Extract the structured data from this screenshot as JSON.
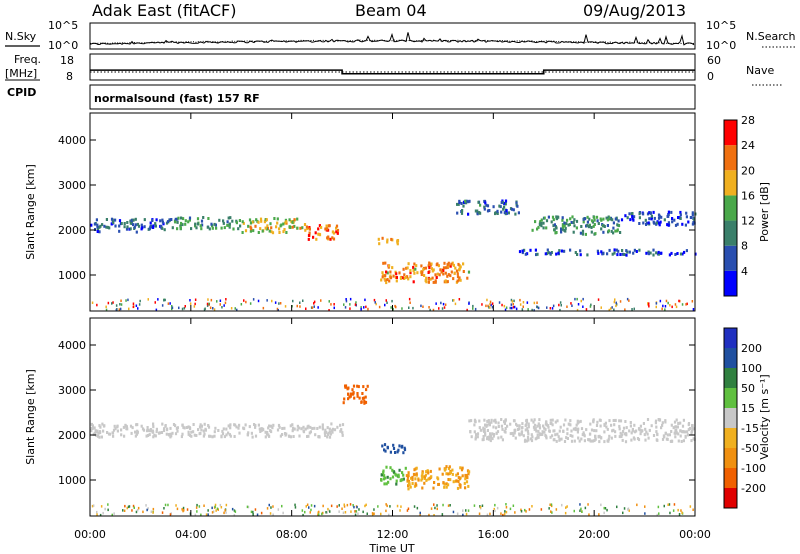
{
  "header": {
    "radar": "Adak East (fitACF)",
    "beam": "Beam 04",
    "date": "09/Aug/2013"
  },
  "noise_panel": {
    "left_label": "N.Sky",
    "right_label": "N.Search",
    "left_ticks": [
      "10^5",
      "10^0"
    ],
    "right_ticks": [
      "10^5",
      "10^0"
    ]
  },
  "freq_panel": {
    "left_label_1": "Freq.",
    "left_label_2": "[MHz]",
    "cpid_label": "CPID",
    "right_label": "Nave",
    "left_ticks": [
      "18",
      "8"
    ],
    "right_ticks": [
      "60",
      "0"
    ],
    "freq_mhz": [
      {
        "t_start": "00:00",
        "t_end": "10:00",
        "value": 11.8
      },
      {
        "t_start": "10:00",
        "t_end": "18:00",
        "value": 10.4
      },
      {
        "t_start": "18:00",
        "t_end": "24:00",
        "value": 11.8
      }
    ]
  },
  "cpid_text": "normalsound (fast) 157 RF",
  "colors": {
    "power": [
      "#0000ff",
      "#2a4fb0",
      "#3a7f6a",
      "#4aa84a",
      "#f0b020",
      "#f07010",
      "#ff0000"
    ],
    "velocity": [
      "#e00000",
      "#f06000",
      "#f09010",
      "#f0b020",
      "#c8c8c8",
      "#60c040",
      "#308040",
      "#2050a0",
      "#2030c0"
    ]
  },
  "chart_data": [
    {
      "type": "heatmap",
      "name": "power",
      "ylabel": "Slant Range [km]",
      "y_ticks": [
        "1000",
        "2000",
        "3000",
        "4000"
      ],
      "ylim": [
        200,
        4600
      ],
      "x_ticks": [
        "00:00",
        "04:00",
        "08:00",
        "12:00",
        "16:00",
        "20:00",
        "00:00"
      ],
      "xlim_hours": [
        0,
        24
      ],
      "colorbar_label": "Power [dB]",
      "colorbar_ticks": [
        "4",
        "8",
        "12",
        "16",
        "20",
        "24",
        "28"
      ],
      "colorbar_range": [
        0,
        30
      ],
      "features": [
        {
          "t_start": 0.0,
          "t_end": 3.0,
          "range_center_km": 2100,
          "range_half_km": 150,
          "power_db": 8
        },
        {
          "t_start": 3.0,
          "t_end": 6.0,
          "range_center_km": 2150,
          "range_half_km": 130,
          "power_db": 12
        },
        {
          "t_start": 6.0,
          "t_end": 8.5,
          "range_center_km": 2100,
          "range_half_km": 160,
          "power_db": 18
        },
        {
          "t_start": 8.5,
          "t_end": 9.8,
          "range_center_km": 1950,
          "range_half_km": 160,
          "power_db": 24
        },
        {
          "t_start": 11.3,
          "t_end": 12.2,
          "range_center_km": 1750,
          "range_half_km": 70,
          "power_db": 22
        },
        {
          "t_start": 11.5,
          "t_end": 15.0,
          "range_center_km": 1050,
          "range_half_km": 220,
          "power_db": 22
        },
        {
          "t_start": 14.5,
          "t_end": 17.0,
          "range_center_km": 2500,
          "range_half_km": 150,
          "power_db": 8
        },
        {
          "t_start": 17.5,
          "t_end": 21.0,
          "range_center_km": 2100,
          "range_half_km": 200,
          "power_db": 12
        },
        {
          "t_start": 21.0,
          "t_end": 24.0,
          "range_center_km": 2250,
          "range_half_km": 150,
          "power_db": 6
        },
        {
          "t_start": 17.0,
          "t_end": 24.0,
          "range_center_km": 1500,
          "range_half_km": 60,
          "power_db": 6
        }
      ]
    },
    {
      "type": "heatmap",
      "name": "velocity",
      "ylabel": "Slant Range [km]",
      "y_ticks": [
        "1000",
        "2000",
        "3000",
        "4000"
      ],
      "ylim": [
        200,
        4600
      ],
      "x_ticks": [
        "00:00",
        "04:00",
        "08:00",
        "12:00",
        "16:00",
        "20:00",
        "00:00"
      ],
      "xlim_hours": [
        0,
        24
      ],
      "xlabel": "Time UT",
      "colorbar_label": "Velocity [m s⁻¹]",
      "colorbar_ticks": [
        "200",
        "100",
        "50",
        "15",
        "-15",
        "-50",
        "-100",
        "-200"
      ],
      "features": [
        {
          "t_start": 0.0,
          "t_end": 10.0,
          "range_center_km": 2100,
          "range_half_km": 150,
          "velocity_ms": 0
        },
        {
          "t_start": 10.0,
          "t_end": 11.0,
          "range_center_km": 2900,
          "range_half_km": 200,
          "velocity_ms": -150
        },
        {
          "t_start": 11.5,
          "t_end": 12.5,
          "range_center_km": 1700,
          "range_half_km": 100,
          "velocity_ms": 150
        },
        {
          "t_start": 11.5,
          "t_end": 12.5,
          "range_center_km": 1100,
          "range_half_km": 200,
          "velocity_ms": 40
        },
        {
          "t_start": 12.5,
          "t_end": 15.0,
          "range_center_km": 1050,
          "range_half_km": 250,
          "velocity_ms": -50
        },
        {
          "t_start": 15.0,
          "t_end": 24.0,
          "range_center_km": 2100,
          "range_half_km": 250,
          "velocity_ms": 0
        }
      ]
    }
  ]
}
